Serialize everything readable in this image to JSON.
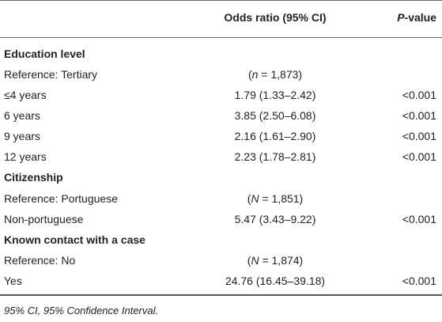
{
  "table": {
    "header": {
      "col_or": "Odds ratio (95% CI)",
      "col_p_italic": "P",
      "col_p_suffix": "-value"
    },
    "sections": [
      {
        "title": "Education level",
        "rows": [
          {
            "label": "Reference: Tertiary",
            "or_prefix": "(",
            "or_var": "n",
            "or_suffix": " = 1,873)",
            "p": ""
          },
          {
            "label": "≤4 years",
            "or": "1.79 (1.33–2.42)",
            "p": "<0.001"
          },
          {
            "label": "6 years",
            "or": "3.85 (2.50–6.08)",
            "p": "<0.001"
          },
          {
            "label": "9 years",
            "or": "2.16 (1.61–2.90)",
            "p": "<0.001"
          },
          {
            "label": "12 years",
            "or": "2.23 (1.78–2.81)",
            "p": "<0.001"
          }
        ]
      },
      {
        "title": "Citizenship",
        "rows": [
          {
            "label": "Reference: Portuguese",
            "or_prefix": "(",
            "or_var": "N",
            "or_suffix": " = 1,851)",
            "p": ""
          },
          {
            "label": "Non-portuguese",
            "or": "5.47 (3.43–9.22)",
            "p": "<0.001"
          }
        ]
      },
      {
        "title": "Known contact with a case",
        "rows": [
          {
            "label": "Reference: No",
            "or_prefix": "(",
            "or_var": "N",
            "or_suffix": " = 1,874)",
            "p": ""
          },
          {
            "label": "Yes",
            "or": "24.76 (16.45–39.18)",
            "p": "<0.001"
          }
        ]
      }
    ],
    "footnote": "95% CI, 95% Confidence Interval."
  }
}
